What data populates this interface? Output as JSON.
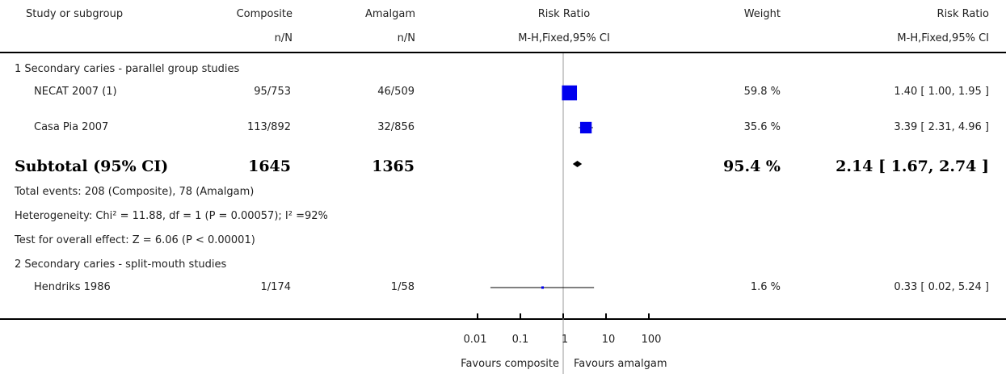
{
  "header": {
    "col_study": "Study or subgroup",
    "col_g1": "Composite",
    "col_g1_sub": "n/N",
    "col_g2": "Amalgam",
    "col_g2_sub": "n/N",
    "col_rr_plot": "Risk Ratio",
    "col_rr_plot_sub": "M-H,Fixed,95% CI",
    "col_weight": "Weight",
    "col_rr": "Risk Ratio",
    "col_rr_sub": "M-H,Fixed,95% CI"
  },
  "groups": [
    {
      "title": "1 Secondary caries - parallel group studies",
      "studies": [
        {
          "name": "NECAT 2007 (1)",
          "g1": "95/753",
          "g2": "46/509",
          "weight": "59.8 %",
          "ci": "1.40 [ 1.00, 1.95 ]"
        },
        {
          "name": "Casa Pia 2007",
          "g1": "113/892",
          "g2": "32/856",
          "weight": "35.6 %",
          "ci": "3.39 [ 2.31, 4.96 ]"
        }
      ],
      "subtotal": {
        "label": "Subtotal (95% CI)",
        "g1": "1645",
        "g2": "1365",
        "weight": "95.4 %",
        "ci": "2.14 [ 1.67, 2.74 ]"
      },
      "notes": [
        "Total events: 208 (Composite), 78 (Amalgam)",
        "Heterogeneity: Chi² = 11.88, df = 1 (P = 0.00057); I² =92%",
        "Test for overall effect: Z = 6.06 (P < 0.00001)"
      ]
    },
    {
      "title": "2 Secondary caries - split-mouth studies",
      "studies": [
        {
          "name": "Hendriks 1986",
          "g1": "1/174",
          "g2": "1/58",
          "weight": "1.6 %",
          "ci": "0.33 [ 0.02, 5.24 ]"
        }
      ]
    }
  ],
  "axis": {
    "ticks": [
      "0.01",
      "0.1",
      "1",
      "10",
      "100"
    ],
    "favours_left": "Favours composite",
    "favours_right": "Favours amalgam"
  },
  "chart_data": {
    "type": "scatter",
    "xscale": "log",
    "xlim": [
      0.01,
      100
    ],
    "reference_line": 1,
    "series": [
      {
        "name": "NECAT 2007 (1)",
        "rr": 1.4,
        "lower": 1.0,
        "upper": 1.95,
        "weight": 59.8,
        "marker": "square"
      },
      {
        "name": "Casa Pia 2007",
        "rr": 3.39,
        "lower": 2.31,
        "upper": 4.96,
        "weight": 35.6,
        "marker": "square"
      },
      {
        "name": "Subtotal (95% CI)",
        "rr": 2.14,
        "lower": 1.67,
        "upper": 2.74,
        "weight": 95.4,
        "marker": "diamond"
      },
      {
        "name": "Hendriks 1986",
        "rr": 0.33,
        "lower": 0.02,
        "upper": 5.24,
        "weight": 1.6,
        "marker": "square"
      }
    ],
    "colors": {
      "marker": "#0000ee",
      "diamond": "#000000",
      "line": "#000000",
      "refline": "#999999"
    }
  }
}
